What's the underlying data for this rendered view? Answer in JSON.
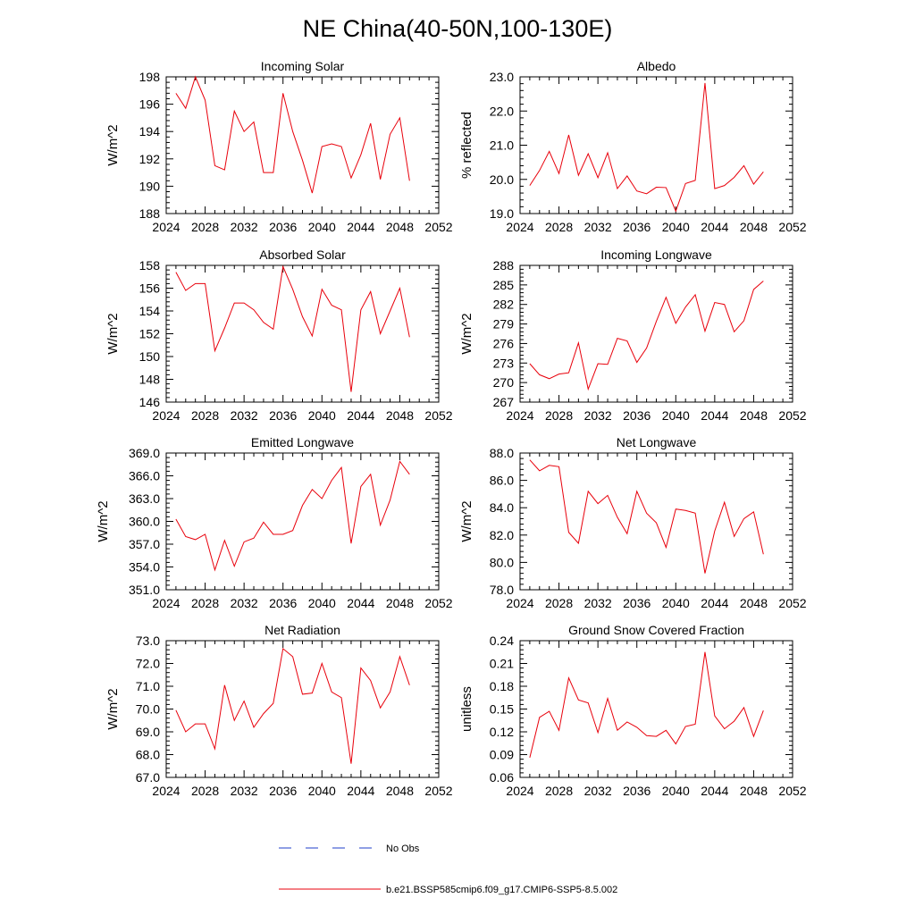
{
  "title": "NE China(40-50N,100-130E)",
  "legend": {
    "entries": [
      {
        "label": "No Obs",
        "color": "#1f3fc8",
        "dash": "dashed"
      },
      {
        "label": "b.e21.BSSP585cmip6.f09_g17.CMIP6-SSP5-8.5.002",
        "color": "#e8000b",
        "dash": "solid"
      }
    ]
  },
  "chart_data": [
    {
      "type": "line",
      "title": "Incoming Solar",
      "ylabel": "W/m^2",
      "xlim": [
        2024,
        2052
      ],
      "ylim": [
        188,
        198
      ],
      "yticks": [
        "188",
        "190",
        "192",
        "194",
        "196",
        "198"
      ],
      "xticks": [
        "2024",
        "2028",
        "2032",
        "2036",
        "2040",
        "2044",
        "2048",
        "2052"
      ],
      "x": [
        2025,
        2026,
        2027,
        2028,
        2029,
        2030,
        2031,
        2032,
        2033,
        2034,
        2035,
        2036,
        2037,
        2038,
        2039,
        2040,
        2041,
        2042,
        2043,
        2044,
        2045,
        2046,
        2047,
        2048,
        2049
      ],
      "values": [
        196.8,
        195.7,
        198.0,
        196.3,
        191.5,
        191.2,
        195.5,
        194.0,
        194.7,
        191.0,
        191.0,
        196.8,
        194.0,
        191.9,
        189.5,
        192.9,
        193.1,
        192.9,
        190.6,
        192.3,
        194.6,
        190.5,
        193.8,
        195.0,
        190.4
      ]
    },
    {
      "type": "line",
      "title": "Albedo",
      "ylabel": "% reflected",
      "xlim": [
        2024,
        2052
      ],
      "ylim": [
        19.0,
        23.0
      ],
      "yticks": [
        "19.0",
        "20.0",
        "21.0",
        "22.0",
        "23.0"
      ],
      "xticks": [
        "2024",
        "2028",
        "2032",
        "2036",
        "2040",
        "2044",
        "2048",
        "2052"
      ],
      "x": [
        2025,
        2026,
        2027,
        2028,
        2029,
        2030,
        2031,
        2032,
        2033,
        2034,
        2035,
        2036,
        2037,
        2038,
        2039,
        2040,
        2041,
        2042,
        2043,
        2044,
        2045,
        2046,
        2047,
        2048,
        2049
      ],
      "values": [
        19.82,
        20.26,
        20.82,
        20.17,
        21.3,
        20.12,
        20.75,
        20.05,
        20.78,
        19.73,
        20.1,
        19.66,
        19.58,
        19.77,
        19.76,
        19.07,
        19.88,
        19.97,
        22.82,
        19.73,
        19.82,
        20.06,
        20.4,
        19.86,
        20.22
      ]
    },
    {
      "type": "line",
      "title": "Absorbed Solar",
      "ylabel": "W/m^2",
      "xlim": [
        2024,
        2052
      ],
      "ylim": [
        146,
        158
      ],
      "yticks": [
        "146",
        "148",
        "150",
        "152",
        "154",
        "156",
        "158"
      ],
      "xticks": [
        "2024",
        "2028",
        "2032",
        "2036",
        "2040",
        "2044",
        "2048",
        "2052"
      ],
      "x": [
        2025,
        2026,
        2027,
        2028,
        2029,
        2030,
        2031,
        2032,
        2033,
        2034,
        2035,
        2036,
        2037,
        2038,
        2039,
        2040,
        2041,
        2042,
        2043,
        2044,
        2045,
        2046,
        2047,
        2048,
        2049
      ],
      "values": [
        157.4,
        155.8,
        156.4,
        156.4,
        150.5,
        152.5,
        154.7,
        154.7,
        154.1,
        153.0,
        152.4,
        157.9,
        155.9,
        153.5,
        151.8,
        155.9,
        154.5,
        154.1,
        146.9,
        154.1,
        155.7,
        152.0,
        154.0,
        156.0,
        151.7
      ]
    },
    {
      "type": "line",
      "title": "Incoming Longwave",
      "ylabel": "W/m^2",
      "xlim": [
        2024,
        2052
      ],
      "ylim": [
        267,
        288
      ],
      "yticks": [
        "267",
        "270",
        "273",
        "276",
        "279",
        "282",
        "285",
        "288"
      ],
      "xticks": [
        "2024",
        "2028",
        "2032",
        "2036",
        "2040",
        "2044",
        "2048",
        "2052"
      ],
      "x": [
        2025,
        2026,
        2027,
        2028,
        2029,
        2030,
        2031,
        2032,
        2033,
        2034,
        2035,
        2036,
        2037,
        2038,
        2039,
        2040,
        2041,
        2042,
        2043,
        2044,
        2045,
        2046,
        2047,
        2048,
        2049
      ],
      "values": [
        272.9,
        271.2,
        270.6,
        271.3,
        271.5,
        276.1,
        269.0,
        272.9,
        272.8,
        276.8,
        276.4,
        273.1,
        275.3,
        279.4,
        283.1,
        279.1,
        281.6,
        283.5,
        277.9,
        282.3,
        282.0,
        277.8,
        279.5,
        284.3,
        285.6
      ]
    },
    {
      "type": "line",
      "title": "Emitted Longwave",
      "ylabel": "W/m^2",
      "xlim": [
        2024,
        2052
      ],
      "ylim": [
        351.0,
        369.0
      ],
      "yticks": [
        "351.0",
        "354.0",
        "357.0",
        "360.0",
        "363.0",
        "366.0",
        "369.0"
      ],
      "xticks": [
        "2024",
        "2028",
        "2032",
        "2036",
        "2040",
        "2044",
        "2048",
        "2052"
      ],
      "x": [
        2025,
        2026,
        2027,
        2028,
        2029,
        2030,
        2031,
        2032,
        2033,
        2034,
        2035,
        2036,
        2037,
        2038,
        2039,
        2040,
        2041,
        2042,
        2043,
        2044,
        2045,
        2046,
        2047,
        2048,
        2049
      ],
      "values": [
        360.3,
        358.0,
        357.6,
        358.3,
        353.6,
        357.5,
        354.1,
        357.3,
        357.8,
        359.9,
        358.3,
        358.3,
        358.8,
        362.1,
        364.2,
        363.0,
        365.4,
        367.1,
        357.1,
        364.6,
        366.2,
        359.5,
        362.8,
        367.9,
        366.2
      ]
    },
    {
      "type": "line",
      "title": "Net Longwave",
      "ylabel": "W/m^2",
      "xlim": [
        2024,
        2052
      ],
      "ylim": [
        78.0,
        88.0
      ],
      "yticks": [
        "78.0",
        "80.0",
        "82.0",
        "84.0",
        "86.0",
        "88.0"
      ],
      "xticks": [
        "2024",
        "2028",
        "2032",
        "2036",
        "2040",
        "2044",
        "2048",
        "2052"
      ],
      "x": [
        2025,
        2026,
        2027,
        2028,
        2029,
        2030,
        2031,
        2032,
        2033,
        2034,
        2035,
        2036,
        2037,
        2038,
        2039,
        2040,
        2041,
        2042,
        2043,
        2044,
        2045,
        2046,
        2047,
        2048,
        2049
      ],
      "values": [
        87.5,
        86.7,
        87.1,
        87.0,
        82.2,
        81.4,
        85.2,
        84.3,
        84.9,
        83.3,
        82.1,
        85.2,
        83.6,
        82.9,
        81.1,
        83.9,
        83.8,
        83.6,
        79.2,
        82.3,
        84.4,
        81.9,
        83.2,
        83.7,
        80.6
      ]
    },
    {
      "type": "line",
      "title": "Net Radiation",
      "ylabel": "W/m^2",
      "xlim": [
        2024,
        2052
      ],
      "ylim": [
        67.0,
        73.0
      ],
      "yticks": [
        "67.0",
        "68.0",
        "69.0",
        "70.0",
        "71.0",
        "72.0",
        "73.0"
      ],
      "xticks": [
        "2024",
        "2028",
        "2032",
        "2036",
        "2040",
        "2044",
        "2048",
        "2052"
      ],
      "x": [
        2025,
        2026,
        2027,
        2028,
        2029,
        2030,
        2031,
        2032,
        2033,
        2034,
        2035,
        2036,
        2037,
        2038,
        2039,
        2040,
        2041,
        2042,
        2043,
        2044,
        2045,
        2046,
        2047,
        2048,
        2049
      ],
      "values": [
        69.95,
        69.0,
        69.35,
        69.35,
        68.25,
        71.05,
        69.5,
        70.35,
        69.2,
        69.8,
        70.25,
        72.65,
        72.3,
        70.65,
        70.7,
        72.0,
        70.75,
        70.5,
        67.6,
        71.8,
        71.25,
        70.05,
        70.75,
        72.3,
        71.05
      ]
    },
    {
      "type": "line",
      "title": "Ground Snow Covered Fraction",
      "ylabel": "unitless",
      "xlim": [
        2024,
        2052
      ],
      "ylim": [
        0.06,
        0.24
      ],
      "yticks": [
        "0.06",
        "0.09",
        "0.12",
        "0.15",
        "0.18",
        "0.21",
        "0.24"
      ],
      "xticks": [
        "2024",
        "2028",
        "2032",
        "2036",
        "2040",
        "2044",
        "2048",
        "2052"
      ],
      "x": [
        2025,
        2026,
        2027,
        2028,
        2029,
        2030,
        2031,
        2032,
        2033,
        2034,
        2035,
        2036,
        2037,
        2038,
        2039,
        2040,
        2041,
        2042,
        2043,
        2044,
        2045,
        2046,
        2047,
        2048,
        2049
      ],
      "values": [
        0.086,
        0.139,
        0.147,
        0.122,
        0.191,
        0.162,
        0.158,
        0.119,
        0.164,
        0.122,
        0.133,
        0.126,
        0.115,
        0.114,
        0.122,
        0.104,
        0.127,
        0.13,
        0.225,
        0.141,
        0.124,
        0.134,
        0.152,
        0.114,
        0.148
      ]
    }
  ]
}
